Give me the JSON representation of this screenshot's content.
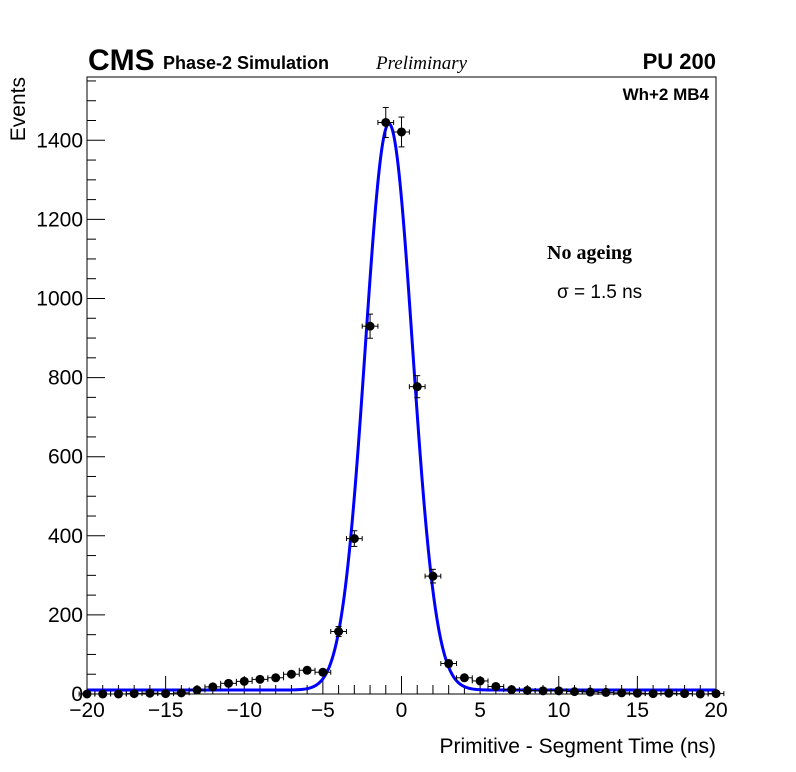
{
  "header": {
    "experiment": "CMS",
    "simulation": "Phase-2 Simulation",
    "status": "Preliminary",
    "pileup": "PU 200",
    "chamber": "Wh+2 MB4"
  },
  "annotation": {
    "condition": "No ageing",
    "sigma_symbol": "σ",
    "sigma_text": " = 1.5 ns"
  },
  "chart_data": {
    "type": "scatter",
    "title": "",
    "xlabel": "Primitive - Segment Time (ns)",
    "ylabel": "Events",
    "xlim": [
      -20,
      20
    ],
    "ylim": [
      0,
      1560
    ],
    "x_ticks": [
      -20,
      -15,
      -10,
      -5,
      0,
      5,
      10,
      15,
      20
    ],
    "x_tick_labels": [
      "−20",
      "−15",
      "−10",
      "−5",
      "0",
      "5",
      "10",
      "15",
      "20"
    ],
    "y_ticks": [
      0,
      200,
      400,
      600,
      800,
      1000,
      1200,
      1400
    ],
    "y_tick_labels": [
      "0",
      "200",
      "400",
      "600",
      "800",
      "1000",
      "1200",
      "1400"
    ],
    "grid": false,
    "series": [
      {
        "kind": "points-with-errors",
        "color": "#000000",
        "x_err": 0.5,
        "points": [
          {
            "x": -20,
            "y": 0
          },
          {
            "x": -19,
            "y": 0
          },
          {
            "x": -18,
            "y": 0
          },
          {
            "x": -17,
            "y": 1
          },
          {
            "x": -16,
            "y": 2
          },
          {
            "x": -15,
            "y": 1
          },
          {
            "x": -14,
            "y": 3
          },
          {
            "x": -13,
            "y": 10
          },
          {
            "x": -12,
            "y": 18
          },
          {
            "x": -11,
            "y": 27
          },
          {
            "x": -10,
            "y": 32
          },
          {
            "x": -9,
            "y": 37
          },
          {
            "x": -8,
            "y": 41
          },
          {
            "x": -7,
            "y": 50
          },
          {
            "x": -6,
            "y": 60
          },
          {
            "x": -5,
            "y": 55
          },
          {
            "x": -4,
            "y": 158
          },
          {
            "x": -3,
            "y": 393
          },
          {
            "x": -2,
            "y": 930
          },
          {
            "x": -1,
            "y": 1445
          },
          {
            "x": 0,
            "y": 1421
          },
          {
            "x": 1,
            "y": 777
          },
          {
            "x": 2,
            "y": 298
          },
          {
            "x": 3,
            "y": 77
          },
          {
            "x": 4,
            "y": 41
          },
          {
            "x": 5,
            "y": 33
          },
          {
            "x": 6,
            "y": 19
          },
          {
            "x": 7,
            "y": 11
          },
          {
            "x": 8,
            "y": 9
          },
          {
            "x": 9,
            "y": 8
          },
          {
            "x": 10,
            "y": 8
          },
          {
            "x": 11,
            "y": 6
          },
          {
            "x": 12,
            "y": 5
          },
          {
            "x": 13,
            "y": 4
          },
          {
            "x": 14,
            "y": 3
          },
          {
            "x": 15,
            "y": 2
          },
          {
            "x": 16,
            "y": 1
          },
          {
            "x": 17,
            "y": 2
          },
          {
            "x": 18,
            "y": 1
          },
          {
            "x": 19,
            "y": 0
          },
          {
            "x": 20,
            "y": 1
          }
        ]
      },
      {
        "kind": "fit-curve",
        "color": "#0000ff",
        "function": "gaussian",
        "baseline": 10,
        "amplitude": 1432,
        "mean": -0.8,
        "sigma": 1.5,
        "x_range": [
          -20,
          20
        ]
      }
    ]
  }
}
